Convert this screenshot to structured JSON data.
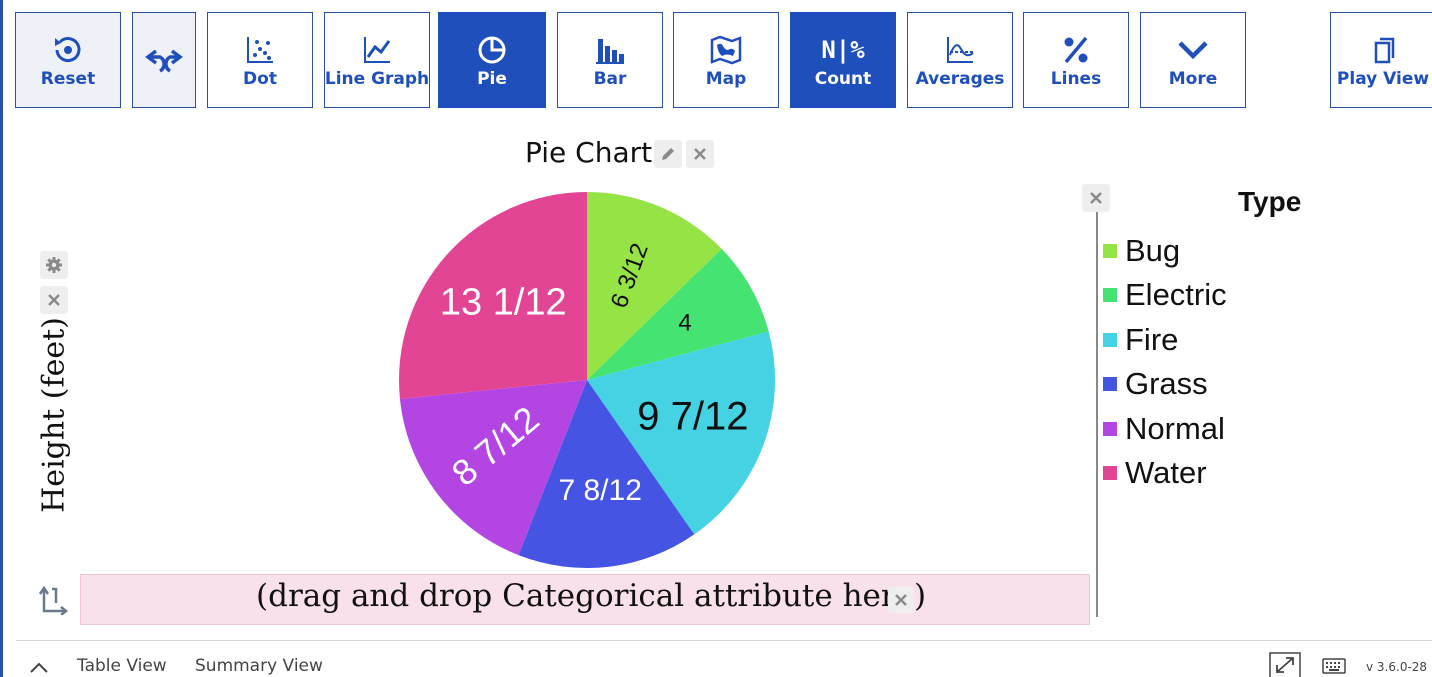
{
  "toolbar": {
    "buttons": [
      {
        "label": "Reset",
        "icon": "reset-icon"
      },
      {
        "label": "",
        "icon": "undo-redo-icon"
      },
      {
        "label": "Dot",
        "icon": "dot-plot-icon"
      },
      {
        "label": "Line Graph",
        "icon": "line-graph-icon"
      },
      {
        "label": "Pie",
        "icon": "pie-chart-icon",
        "active": true
      },
      {
        "label": "Bar",
        "icon": "bar-chart-icon"
      },
      {
        "label": "Map",
        "icon": "map-icon"
      },
      {
        "label": "Count",
        "icon": "count-icon",
        "icon_text": "N|%",
        "active": true
      },
      {
        "label": "Averages",
        "icon": "averages-icon"
      },
      {
        "label": "Lines",
        "icon": "lines-icon"
      },
      {
        "label": "More",
        "icon": "chevron-down-icon"
      },
      {
        "label": "Play View",
        "icon": "play-view-icon"
      }
    ]
  },
  "plot": {
    "title": "Pie Chart",
    "y_axis_label": "Height (feet)",
    "drop_zone_text": "(drag and drop Categorical attribute here)"
  },
  "legend": {
    "title": "Type",
    "items": [
      {
        "label": "Bug",
        "color": "#95e345"
      },
      {
        "label": "Electric",
        "color": "#45e371"
      },
      {
        "label": "Fire",
        "color": "#45d3e3"
      },
      {
        "label": "Grass",
        "color": "#4554e3"
      },
      {
        "label": "Normal",
        "color": "#b345e3"
      },
      {
        "label": "Water",
        "color": "#e34595"
      }
    ]
  },
  "chart_data": {
    "type": "pie",
    "title": "Pie Chart",
    "slices": [
      {
        "category": "Bug",
        "value": 6.25,
        "label": "6 3/12",
        "color": "#95e345"
      },
      {
        "category": "Electric",
        "value": 4,
        "label": "4",
        "color": "#45e371"
      },
      {
        "category": "Fire",
        "value": 9.583,
        "label": "9 7/12",
        "color": "#45d3e3"
      },
      {
        "category": "Grass",
        "value": 7.667,
        "label": "7 8/12",
        "color": "#4554e3"
      },
      {
        "category": "Normal",
        "value": 8.583,
        "label": "8 7/12",
        "color": "#b345e3"
      },
      {
        "category": "Water",
        "value": 13.083,
        "label": "13 1/12",
        "color": "#e34595"
      }
    ]
  },
  "bottom": {
    "tabs": [
      "Table View",
      "Summary View"
    ],
    "version": "v 3.6.0-28"
  }
}
